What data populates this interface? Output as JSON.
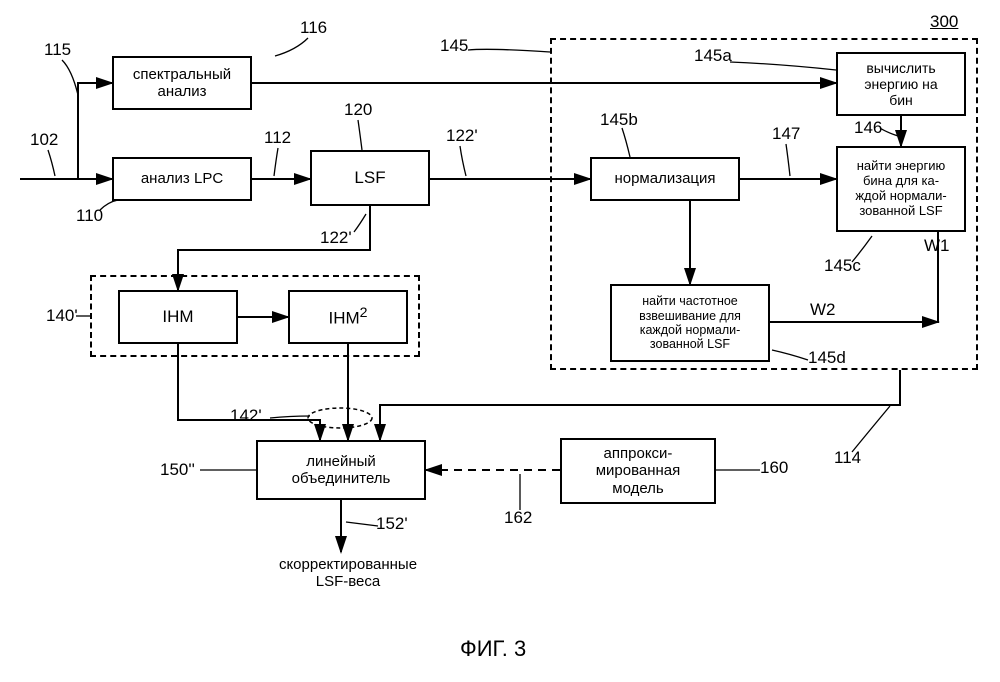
{
  "type": "flowchart",
  "colors": {
    "stroke": "#000000",
    "bg": "#ffffff"
  },
  "fig_label": "300",
  "caption": "ФИГ. 3",
  "nodes": {
    "spectral": {
      "label": "спектральный\nанализ",
      "num": "116",
      "num_pos": "top"
    },
    "lpc": {
      "label": "анализ LPC",
      "num": "110",
      "num_pos": "bottom"
    },
    "lsf": {
      "label": "LSF",
      "num": "120",
      "num_pos": "top"
    },
    "norm": {
      "label": "нормализация",
      "num": "145b",
      "num_pos": "top"
    },
    "energybin": {
      "label": "вычислить\nэнергию на\nбин",
      "num": "145a",
      "num_pos": "top-left"
    },
    "findenergy": {
      "label": "найти энергию\nбина для ка-\nждой нормали-\nзованной LSF",
      "num": "145c",
      "num_pos": "bottom-left"
    },
    "findfreq": {
      "label": "найти частотное\nвзвешивание для\nкаждой нормали-\nзованной LSF",
      "num": "145d",
      "num_pos": "right"
    },
    "ihm": {
      "label": "IHM"
    },
    "ihm2": {
      "label": "IHM",
      "sup": "2"
    },
    "combiner": {
      "label": "линейный\nобъединитель",
      "num": "150''",
      "num_pos": "left"
    },
    "approx": {
      "label": "аппрокси-\nмированная\nмодель",
      "num": "160",
      "num_pos": "right"
    }
  },
  "edge_labels": {
    "input": "102",
    "branch_up": "115",
    "after_lpc": "112",
    "after_lsf_top": "122'",
    "after_lsf_down": "122'",
    "norm_out": "147",
    "energy_out": "146",
    "w1": "W1",
    "w2": "W2",
    "dashed_region_r": "145",
    "ihm_region": "140'",
    "ihm_out": "142'",
    "right_bottom": "114",
    "approx_out": "162",
    "final": "152'"
  },
  "output_label": "скорректированные\nLSF-веса",
  "font": {
    "box_fs": 15,
    "label_fs": 17
  }
}
